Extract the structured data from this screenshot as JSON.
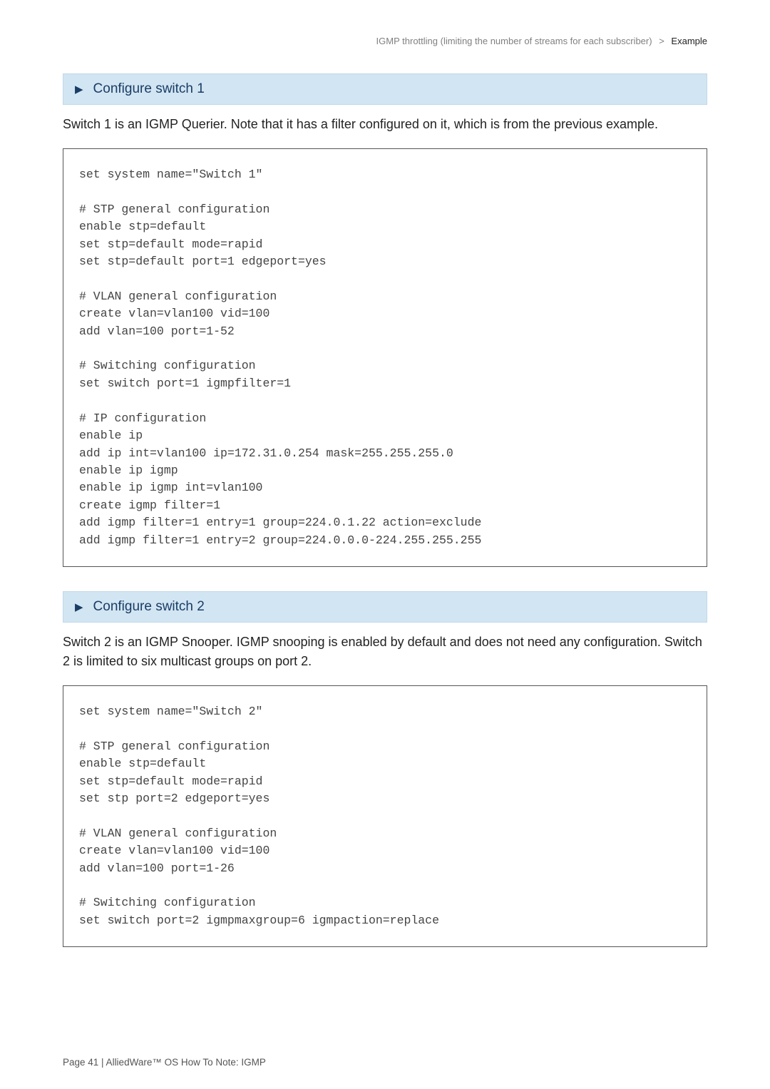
{
  "header": {
    "left": "IGMP throttling (limiting the number of streams for each subscriber)",
    "sep": ">",
    "right": "Example"
  },
  "section1": {
    "arrow": "▶",
    "title": "Configure switch 1",
    "intro": "Switch 1 is an IGMP Querier. Note that it has a filter configured on it, which is from the previous example.",
    "code": "set system name=\"Switch 1\"\n\n# STP general configuration\nenable stp=default\nset stp=default mode=rapid\nset stp=default port=1 edgeport=yes\n\n# VLAN general configuration\ncreate vlan=vlan100 vid=100\nadd vlan=100 port=1-52\n\n# Switching configuration\nset switch port=1 igmpfilter=1\n\n# IP configuration\nenable ip\nadd ip int=vlan100 ip=172.31.0.254 mask=255.255.255.0\nenable ip igmp\nenable ip igmp int=vlan100\ncreate igmp filter=1\nadd igmp filter=1 entry=1 group=224.0.1.22 action=exclude\nadd igmp filter=1 entry=2 group=224.0.0.0-224.255.255.255"
  },
  "section2": {
    "arrow": "▶",
    "title": "Configure switch 2",
    "intro": "Switch 2 is an IGMP Snooper. IGMP snooping is enabled by default and does not need any configuration. Switch 2 is limited to six multicast groups on port 2.",
    "code": "set system name=\"Switch 2\"\n\n# STP general configuration\nenable stp=default\nset stp=default mode=rapid\nset stp port=2 edgeport=yes\n\n# VLAN general configuration\ncreate vlan=vlan100 vid=100\nadd vlan=100 port=1-26\n\n# Switching configuration\nset switch port=2 igmpmaxgroup=6 igmpaction=replace"
  },
  "footer": "Page 41 | AlliedWare™ OS How To Note: IGMP"
}
